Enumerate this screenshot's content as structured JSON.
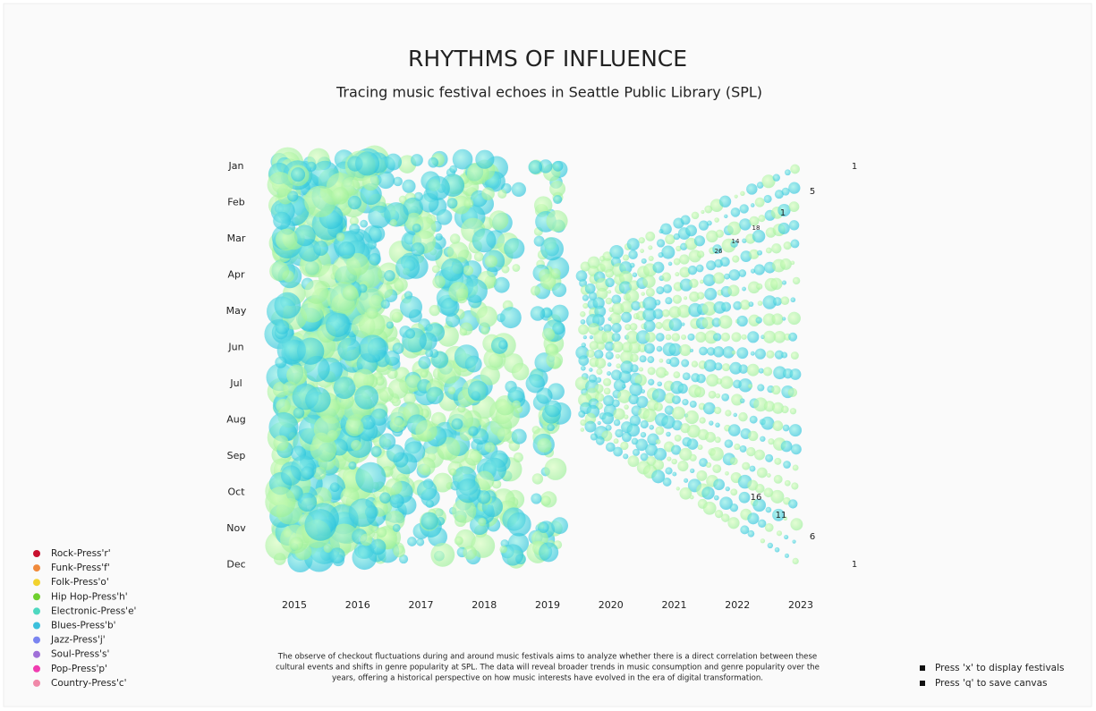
{
  "header": {
    "title": "RHYTHMS OF INFLUENCE",
    "subtitle": "Tracing music festival echoes in Seattle Public Library (SPL)"
  },
  "months": [
    "Jan",
    "Feb",
    "Mar",
    "Apr",
    "May",
    "Jun",
    "Jul",
    "Aug",
    "Sep",
    "Oct",
    "Nov",
    "Dec"
  ],
  "years": [
    "2015",
    "2016",
    "2017",
    "2018",
    "2019",
    "2020",
    "2021",
    "2022",
    "2023"
  ],
  "annotations": [
    "1",
    "5",
    "1",
    "18",
    "14",
    "26",
    "16",
    "11",
    "6",
    "1"
  ],
  "legend": [
    "Rock-Press'r'",
    "Funk-Press'f'",
    "Folk-Press'o'",
    "Hip Hop-Press'h'",
    "Electronic-Press'e'",
    "Blues-Press'b'",
    "Jazz-Press'j'",
    "Soul-Press's'",
    "Pop-Press'p'",
    "Country-Press'c'"
  ],
  "description": [
    "The observe of checkout fluctuations during and around music festivals aims to analyze whether there is a direct correlation between these",
    "cultural events and shifts in genre popularity at SPL. The data will reveal broader trends in music consumption and genre popularity over the",
    "years, offering a historical perspective on how music interests have evolved in the era of digital transformation."
  ],
  "instructions": [
    "Press 'x' to display festivals",
    "Press 'q' to save canvas"
  ]
}
